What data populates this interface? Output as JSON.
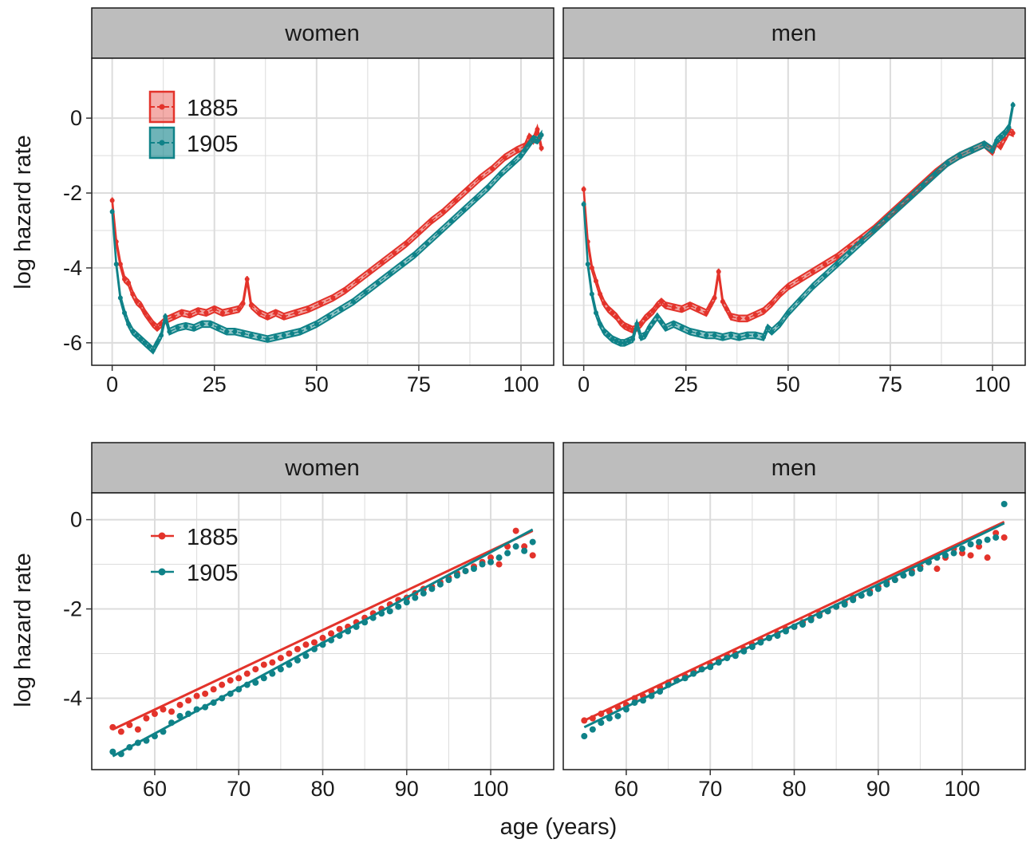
{
  "colors": {
    "1885": "#e3332b",
    "1905": "#0f8288",
    "grid": "#dcdcdc",
    "strip_fill": "#bdbdbd",
    "panel_border": "#1a1a1a"
  },
  "chart_data": [
    {
      "type": "line",
      "facet": "women",
      "row": "top",
      "ylabel": "log hazard rate",
      "xlim": [
        -5,
        108
      ],
      "ylim": [
        -6.6,
        1.6
      ],
      "xticks": [
        0,
        25,
        50,
        75,
        100
      ],
      "xtick_labels": [
        "0",
        "25",
        "50",
        "75",
        "100"
      ],
      "yticks": [
        0,
        -2,
        -4,
        -6
      ],
      "ytick_labels": [
        "0",
        "-2",
        "-4",
        "-6"
      ],
      "legend": {
        "position": "top-left",
        "entries": [
          "1885",
          "1905"
        ]
      },
      "grid": true,
      "band_halfwidth": 0.08,
      "series": [
        {
          "name": "1885",
          "x": [
            0,
            1,
            2,
            3,
            4,
            5,
            6,
            7,
            8,
            9,
            10,
            11,
            12,
            13,
            15,
            17,
            19,
            21,
            23,
            25,
            27,
            29,
            31,
            32,
            33,
            34,
            36,
            38,
            40,
            42,
            45,
            48,
            51,
            54,
            57,
            60,
            63,
            66,
            69,
            72,
            75,
            78,
            81,
            84,
            87,
            90,
            93,
            96,
            99,
            101,
            102,
            103,
            104,
            105
          ],
          "y": [
            -2.2,
            -3.3,
            -3.9,
            -4.3,
            -4.4,
            -4.7,
            -4.9,
            -5.0,
            -5.2,
            -5.35,
            -5.5,
            -5.6,
            -5.5,
            -5.4,
            -5.3,
            -5.2,
            -5.25,
            -5.15,
            -5.2,
            -5.1,
            -5.2,
            -5.15,
            -5.1,
            -4.95,
            -4.3,
            -5.0,
            -5.2,
            -5.3,
            -5.2,
            -5.3,
            -5.2,
            -5.1,
            -4.95,
            -4.8,
            -4.6,
            -4.35,
            -4.1,
            -3.85,
            -3.6,
            -3.35,
            -3.05,
            -2.75,
            -2.5,
            -2.2,
            -1.9,
            -1.6,
            -1.35,
            -1.05,
            -0.85,
            -0.75,
            -0.5,
            -0.6,
            -0.3,
            -0.8
          ]
        },
        {
          "name": "1905",
          "x": [
            0,
            1,
            2,
            3,
            4,
            5,
            6,
            7,
            8,
            9,
            10,
            11,
            12,
            13,
            14,
            16,
            18,
            20,
            22,
            24,
            26,
            28,
            30,
            32,
            34,
            36,
            38,
            40,
            42,
            44,
            46,
            48,
            50,
            53,
            56,
            59,
            62,
            65,
            68,
            71,
            74,
            77,
            80,
            83,
            86,
            89,
            92,
            95,
            98,
            100,
            101,
            102,
            103,
            104,
            105
          ],
          "y": [
            -2.5,
            -3.9,
            -4.8,
            -5.2,
            -5.5,
            -5.7,
            -5.8,
            -5.9,
            -6.0,
            -6.1,
            -6.2,
            -6.0,
            -5.8,
            -5.3,
            -5.7,
            -5.6,
            -5.55,
            -5.6,
            -5.5,
            -5.5,
            -5.6,
            -5.7,
            -5.7,
            -5.75,
            -5.8,
            -5.85,
            -5.9,
            -5.85,
            -5.8,
            -5.75,
            -5.7,
            -5.6,
            -5.5,
            -5.3,
            -5.1,
            -4.9,
            -4.65,
            -4.4,
            -4.15,
            -3.9,
            -3.65,
            -3.35,
            -3.05,
            -2.75,
            -2.45,
            -2.15,
            -1.85,
            -1.5,
            -1.2,
            -1.0,
            -0.85,
            -0.7,
            -0.55,
            -0.6,
            -0.45
          ]
        }
      ]
    },
    {
      "type": "line",
      "facet": "men",
      "row": "top",
      "xlim": [
        -5,
        108
      ],
      "ylim": [
        -6.6,
        1.6
      ],
      "xticks": [
        0,
        25,
        50,
        75,
        100
      ],
      "xtick_labels": [
        "0",
        "25",
        "50",
        "75",
        "100"
      ],
      "yticks": [
        0,
        -2,
        -4,
        -6
      ],
      "grid": true,
      "band_halfwidth": 0.08,
      "series": [
        {
          "name": "1885",
          "x": [
            0,
            1,
            2,
            3,
            4,
            5,
            6,
            7,
            8,
            9,
            10,
            11,
            12,
            13,
            14,
            15,
            16,
            17,
            18,
            19,
            20,
            22,
            24,
            26,
            28,
            30,
            31,
            32,
            33,
            34,
            35,
            36,
            38,
            40,
            42,
            44,
            46,
            48,
            50,
            53,
            56,
            59,
            62,
            65,
            68,
            71,
            74,
            77,
            80,
            83,
            86,
            89,
            92,
            95,
            98,
            100,
            101,
            102,
            103,
            104,
            105
          ],
          "y": [
            -1.9,
            -3.3,
            -4.0,
            -4.35,
            -4.7,
            -4.95,
            -5.1,
            -5.2,
            -5.3,
            -5.45,
            -5.55,
            -5.6,
            -5.65,
            -5.6,
            -5.5,
            -5.35,
            -5.25,
            -5.15,
            -5.0,
            -4.9,
            -5.0,
            -5.05,
            -5.1,
            -5.0,
            -5.1,
            -5.2,
            -5.0,
            -4.8,
            -4.1,
            -4.9,
            -5.1,
            -5.3,
            -5.35,
            -5.35,
            -5.25,
            -5.15,
            -4.95,
            -4.7,
            -4.5,
            -4.3,
            -4.1,
            -3.9,
            -3.7,
            -3.45,
            -3.2,
            -2.95,
            -2.65,
            -2.35,
            -2.05,
            -1.75,
            -1.45,
            -1.2,
            -1.0,
            -0.85,
            -0.7,
            -0.9,
            -0.65,
            -0.75,
            -0.55,
            -0.35,
            -0.4
          ]
        },
        {
          "name": "1905",
          "x": [
            0,
            1,
            2,
            3,
            4,
            5,
            6,
            7,
            8,
            9,
            10,
            11,
            12,
            13,
            14,
            15,
            16,
            17,
            18,
            19,
            20,
            22,
            24,
            26,
            28,
            30,
            32,
            34,
            36,
            38,
            40,
            42,
            44,
            45,
            46,
            48,
            50,
            53,
            56,
            59,
            62,
            65,
            68,
            71,
            74,
            77,
            80,
            83,
            86,
            89,
            92,
            95,
            98,
            100,
            101,
            102,
            103,
            104,
            105
          ],
          "y": [
            -2.3,
            -3.9,
            -4.7,
            -5.2,
            -5.5,
            -5.7,
            -5.8,
            -5.9,
            -5.95,
            -6.0,
            -6.0,
            -5.95,
            -5.9,
            -5.5,
            -5.85,
            -5.8,
            -5.6,
            -5.45,
            -5.3,
            -5.45,
            -5.6,
            -5.5,
            -5.6,
            -5.7,
            -5.75,
            -5.8,
            -5.8,
            -5.85,
            -5.8,
            -5.85,
            -5.8,
            -5.8,
            -5.85,
            -5.6,
            -5.7,
            -5.5,
            -5.2,
            -4.85,
            -4.5,
            -4.2,
            -3.9,
            -3.6,
            -3.3,
            -3.0,
            -2.7,
            -2.4,
            -2.1,
            -1.8,
            -1.5,
            -1.2,
            -1.0,
            -0.85,
            -0.7,
            -0.85,
            -0.6,
            -0.5,
            -0.4,
            -0.25,
            0.35
          ]
        }
      ]
    },
    {
      "type": "scatter",
      "facet": "women",
      "row": "bottom",
      "ylabel": "log hazard rate",
      "xlim": [
        52.5,
        107.5
      ],
      "ylim": [
        -5.6,
        0.6
      ],
      "xticks": [
        60,
        70,
        80,
        90,
        100
      ],
      "xtick_labels": [
        "60",
        "70",
        "80",
        "90",
        "100"
      ],
      "yticks": [
        0,
        -2,
        -4
      ],
      "ytick_labels": [
        "0",
        "-2",
        "-4"
      ],
      "legend": {
        "position": "top-left",
        "entries": [
          "1885",
          "1905"
        ]
      },
      "grid": true,
      "fit_lines": [
        {
          "name": "1885",
          "x": [
            55,
            105
          ],
          "y": [
            -4.7,
            -0.25
          ]
        },
        {
          "name": "1905",
          "x": [
            55,
            105
          ],
          "y": [
            -5.3,
            -0.22
          ]
        }
      ],
      "series": [
        {
          "name": "1885",
          "x": [
            55,
            56,
            57,
            58,
            59,
            60,
            61,
            62,
            63,
            64,
            65,
            66,
            67,
            68,
            69,
            70,
            71,
            72,
            73,
            74,
            75,
            76,
            77,
            78,
            79,
            80,
            81,
            82,
            83,
            84,
            85,
            86,
            87,
            88,
            89,
            90,
            91,
            92,
            93,
            94,
            95,
            96,
            97,
            98,
            99,
            100,
            101,
            102,
            103,
            104,
            105
          ],
          "y": [
            -4.65,
            -4.75,
            -4.6,
            -4.7,
            -4.45,
            -4.35,
            -4.25,
            -4.3,
            -4.15,
            -4.05,
            -3.95,
            -3.9,
            -3.8,
            -3.7,
            -3.6,
            -3.55,
            -3.45,
            -3.35,
            -3.25,
            -3.2,
            -3.1,
            -3.0,
            -2.9,
            -2.8,
            -2.75,
            -2.65,
            -2.55,
            -2.45,
            -2.4,
            -2.3,
            -2.2,
            -2.1,
            -2.0,
            -1.9,
            -1.8,
            -1.75,
            -1.65,
            -1.55,
            -1.5,
            -1.4,
            -1.3,
            -1.2,
            -1.15,
            -1.05,
            -0.95,
            -0.85,
            -1.0,
            -0.6,
            -0.25,
            -0.6,
            -0.8
          ]
        },
        {
          "name": "1905",
          "x": [
            55,
            56,
            57,
            58,
            59,
            60,
            61,
            62,
            63,
            64,
            65,
            66,
            67,
            68,
            69,
            70,
            71,
            72,
            73,
            74,
            75,
            76,
            77,
            78,
            79,
            80,
            81,
            82,
            83,
            84,
            85,
            86,
            87,
            88,
            89,
            90,
            91,
            92,
            93,
            94,
            95,
            96,
            97,
            98,
            99,
            100,
            101,
            102,
            103,
            104,
            105
          ],
          "y": [
            -5.2,
            -5.25,
            -5.1,
            -5.0,
            -4.95,
            -4.85,
            -4.75,
            -4.55,
            -4.4,
            -4.35,
            -4.25,
            -4.2,
            -4.1,
            -4.0,
            -3.9,
            -3.8,
            -3.7,
            -3.65,
            -3.55,
            -3.45,
            -3.35,
            -3.25,
            -3.15,
            -3.05,
            -2.9,
            -2.8,
            -2.7,
            -2.6,
            -2.5,
            -2.4,
            -2.3,
            -2.2,
            -2.1,
            -2.05,
            -1.95,
            -1.85,
            -1.75,
            -1.65,
            -1.55,
            -1.45,
            -1.35,
            -1.25,
            -1.15,
            -1.1,
            -1.0,
            -0.95,
            -0.85,
            -0.75,
            -0.6,
            -0.7,
            -0.5
          ]
        }
      ]
    },
    {
      "type": "scatter",
      "facet": "men",
      "row": "bottom",
      "xlim": [
        52.5,
        107.5
      ],
      "ylim": [
        -5.6,
        0.6
      ],
      "xticks": [
        60,
        70,
        80,
        90,
        100
      ],
      "xtick_labels": [
        "60",
        "70",
        "80",
        "90",
        "100"
      ],
      "yticks": [
        0,
        -2,
        -4
      ],
      "grid": true,
      "fit_lines": [
        {
          "name": "1885",
          "x": [
            55,
            105
          ],
          "y": [
            -4.5,
            -0.05
          ]
        },
        {
          "name": "1905",
          "x": [
            55,
            105
          ],
          "y": [
            -4.65,
            -0.08
          ]
        }
      ],
      "series": [
        {
          "name": "1885",
          "x": [
            55,
            56,
            57,
            58,
            59,
            60,
            61,
            62,
            63,
            64,
            65,
            66,
            67,
            68,
            69,
            70,
            71,
            72,
            73,
            74,
            75,
            76,
            77,
            78,
            79,
            80,
            81,
            82,
            83,
            84,
            85,
            86,
            87,
            88,
            89,
            90,
            91,
            92,
            93,
            94,
            95,
            96,
            97,
            98,
            99,
            100,
            101,
            102,
            103,
            104,
            105
          ],
          "y": [
            -4.5,
            -4.45,
            -4.35,
            -4.3,
            -4.2,
            -4.15,
            -4.0,
            -3.95,
            -3.85,
            -3.75,
            -3.65,
            -3.6,
            -3.5,
            -3.4,
            -3.35,
            -3.25,
            -3.15,
            -3.05,
            -3.0,
            -2.9,
            -2.8,
            -2.7,
            -2.65,
            -2.55,
            -2.45,
            -2.4,
            -2.3,
            -2.2,
            -2.1,
            -2.05,
            -1.95,
            -1.85,
            -1.75,
            -1.7,
            -1.6,
            -1.5,
            -1.4,
            -1.35,
            -1.25,
            -1.15,
            -1.05,
            -0.95,
            -1.1,
            -0.85,
            -0.65,
            -0.75,
            -0.8,
            -0.6,
            -0.85,
            -0.3,
            -0.4
          ]
        },
        {
          "name": "1905",
          "x": [
            55,
            56,
            57,
            58,
            59,
            60,
            61,
            62,
            63,
            64,
            65,
            66,
            67,
            68,
            69,
            70,
            71,
            72,
            73,
            74,
            75,
            76,
            77,
            78,
            79,
            80,
            81,
            82,
            83,
            84,
            85,
            86,
            87,
            88,
            89,
            90,
            91,
            92,
            93,
            94,
            95,
            96,
            97,
            98,
            99,
            100,
            101,
            102,
            103,
            104,
            105
          ],
          "y": [
            -4.85,
            -4.7,
            -4.55,
            -4.45,
            -4.4,
            -4.25,
            -4.1,
            -4.05,
            -3.95,
            -3.85,
            -3.7,
            -3.6,
            -3.55,
            -3.45,
            -3.35,
            -3.3,
            -3.2,
            -3.1,
            -3.05,
            -2.95,
            -2.85,
            -2.75,
            -2.65,
            -2.6,
            -2.5,
            -2.4,
            -2.35,
            -2.25,
            -2.15,
            -2.05,
            -1.95,
            -1.9,
            -1.8,
            -1.7,
            -1.65,
            -1.55,
            -1.45,
            -1.35,
            -1.25,
            -1.2,
            -1.1,
            -0.95,
            -0.85,
            -0.8,
            -0.75,
            -0.65,
            -0.55,
            -0.5,
            -0.45,
            -0.4,
            0.35
          ]
        }
      ]
    }
  ],
  "strips": {
    "top_left": "women",
    "top_right": "men",
    "bottom_left": "women",
    "bottom_right": "men"
  },
  "axes": {
    "ylabel_top": "log hazard rate",
    "ylabel_bottom": "log hazard rate",
    "xlabel": "age (years)"
  },
  "legend": {
    "label_1885": "1885",
    "label_1905": "1905"
  }
}
